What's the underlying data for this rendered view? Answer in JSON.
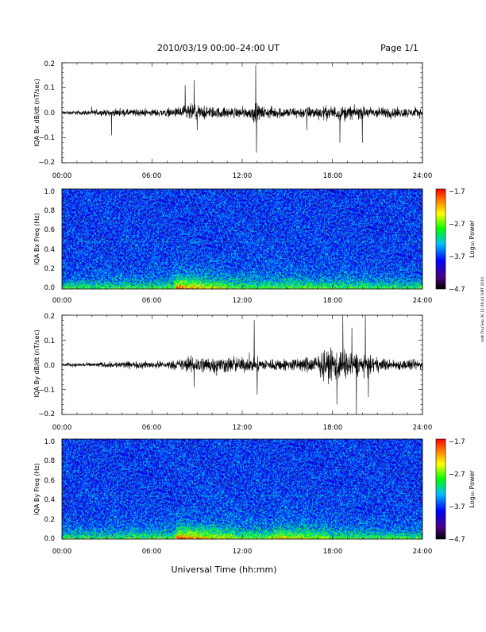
{
  "page": {
    "title": "2010/03/19  00:00–24:00 UT",
    "page_label": "Page 1/1",
    "side_stamp": "mdt Thu Sep 30 11:56:41 GMT 2010",
    "xlabel": "Universal Time (hh:mm)"
  },
  "chart_data": [
    {
      "type": "line",
      "ylabel": "IQA Bx dB/dt (nT/sec)",
      "ylim": [
        -0.2,
        0.2
      ],
      "yticks": [
        "0.2",
        "0.1",
        "0.0",
        "−0.1",
        "−0.2"
      ],
      "xticks": [
        "00:00",
        "06:00",
        "12:00",
        "18:00",
        "24:00"
      ],
      "xlim_hours": [
        0,
        24
      ],
      "series": [
        {
          "envelope_hours": [
            0,
            2,
            4,
            6,
            7.5,
            8.5,
            9,
            9.5,
            11,
            12.5,
            12.8,
            13.2,
            15,
            17,
            18,
            18.5,
            20,
            22,
            24
          ],
          "envelope_amp": [
            0.01,
            0.015,
            0.02,
            0.02,
            0.025,
            0.05,
            0.045,
            0.035,
            0.03,
            0.03,
            0.06,
            0.035,
            0.03,
            0.035,
            0.04,
            0.04,
            0.035,
            0.03,
            0.025
          ]
        }
      ],
      "spikes": [
        {
          "x": 3.3,
          "y": -0.09
        },
        {
          "x": 8.2,
          "y": 0.11
        },
        {
          "x": 8.8,
          "y": 0.13
        },
        {
          "x": 9.0,
          "y": -0.07
        },
        {
          "x": 12.9,
          "y": 0.19
        },
        {
          "x": 12.95,
          "y": -0.16
        },
        {
          "x": 18.5,
          "y": -0.12
        },
        {
          "x": 20.0,
          "y": -0.12
        },
        {
          "x": 16.3,
          "y": -0.07
        }
      ]
    },
    {
      "type": "heatmap",
      "ylabel": "IQA Bx Freq (Hz)",
      "ylim": [
        0.0,
        1.0
      ],
      "yticks": [
        "1.0",
        "0.8",
        "0.6",
        "0.4",
        "0.2",
        "0.0"
      ],
      "xticks": [
        "00:00",
        "06:00",
        "12:00",
        "18:00",
        "24:00"
      ],
      "colorbar": {
        "label": "Log₁₀ Power",
        "ticks": [
          "−1.7",
          "−2.7",
          "−3.7",
          "−4.7"
        ],
        "range": [
          -4.7,
          -1.7
        ]
      },
      "line_freq_hz": 0.47,
      "events": [
        {
          "start": 7.7,
          "end": 9.5,
          "strength": 0.9
        }
      ]
    },
    {
      "type": "line",
      "ylabel": "IQA By dB/dt (nT/sec)",
      "ylim": [
        -0.2,
        0.2
      ],
      "yticks": [
        "0.2",
        "0.1",
        "0.0",
        "−0.1",
        "−0.2"
      ],
      "xticks": [
        "00:00",
        "06:00",
        "12:00",
        "18:00",
        "24:00"
      ],
      "xlim_hours": [
        0,
        24
      ],
      "series": [
        {
          "envelope_hours": [
            0,
            2,
            4,
            6,
            7.5,
            8.5,
            9.5,
            11,
            12.5,
            13.5,
            15,
            16,
            17,
            18,
            19,
            20,
            21,
            22,
            24
          ],
          "envelope_amp": [
            0.01,
            0.012,
            0.02,
            0.02,
            0.025,
            0.045,
            0.05,
            0.045,
            0.04,
            0.035,
            0.035,
            0.04,
            0.06,
            0.1,
            0.08,
            0.06,
            0.04,
            0.03,
            0.03
          ]
        }
      ],
      "spikes": [
        {
          "x": 12.8,
          "y": 0.18
        },
        {
          "x": 13.0,
          "y": -0.12
        },
        {
          "x": 18.7,
          "y": 0.2
        },
        {
          "x": 19.3,
          "y": 0.15
        },
        {
          "x": 19.6,
          "y": -0.2
        },
        {
          "x": 18.3,
          "y": -0.16
        },
        {
          "x": 20.2,
          "y": 0.2
        },
        {
          "x": 20.4,
          "y": -0.13
        },
        {
          "x": 8.8,
          "y": -0.09
        }
      ]
    },
    {
      "type": "heatmap",
      "ylabel": "IQA By Freq (Hz)",
      "ylim": [
        0.0,
        1.0
      ],
      "yticks": [
        "1.0",
        "0.8",
        "0.6",
        "0.4",
        "0.2",
        "0.0"
      ],
      "xticks": [
        "00:00",
        "06:00",
        "12:00",
        "18:00",
        "24:00"
      ],
      "colorbar": {
        "label": "Log₁₀ Power",
        "ticks": [
          "−1.7",
          "−2.7",
          "−3.7",
          "−4.7"
        ],
        "range": [
          -4.7,
          -1.7
        ]
      },
      "line_freq_hz": 0.43,
      "events": [
        {
          "start": 7.7,
          "end": 10.0,
          "strength": 1.0
        },
        {
          "start": 14.2,
          "end": 16.3,
          "strength": 0.5
        }
      ]
    }
  ]
}
